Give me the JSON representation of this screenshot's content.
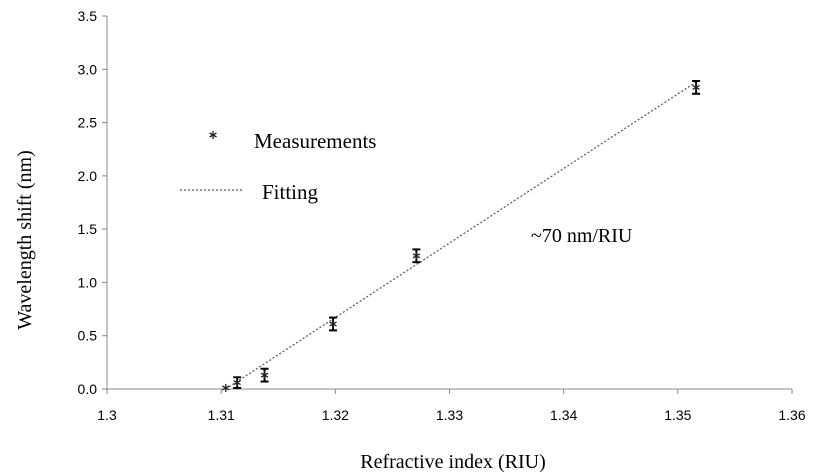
{
  "chart_data": {
    "type": "scatter",
    "xlabel": "Refractive index (RIU)",
    "ylabel": "Wavelength shift  (nm)",
    "xlim": [
      1.3,
      1.36
    ],
    "ylim": [
      0,
      3.5
    ],
    "x_ticks": [
      "1.3",
      "1.31",
      "1.32",
      "1.33",
      "1.34",
      "1.35",
      "1.36"
    ],
    "y_ticks": [
      "0.0",
      "0.5",
      "1.0",
      "1.5",
      "2.0",
      "2.5",
      "3.0",
      "3.5"
    ],
    "grid": false,
    "legend_position": "upper-left",
    "annotation": "~70 nm/RIU",
    "series": [
      {
        "name": "Measurements",
        "marker": "asterisk",
        "points": [
          {
            "x": 1.3104,
            "y": 0.01,
            "err": 0.0
          },
          {
            "x": 1.3114,
            "y": 0.06,
            "err": 0.05
          },
          {
            "x": 1.3138,
            "y": 0.13,
            "err": 0.06
          },
          {
            "x": 1.3198,
            "y": 0.61,
            "err": 0.06
          },
          {
            "x": 1.3271,
            "y": 1.25,
            "err": 0.06
          },
          {
            "x": 1.3516,
            "y": 2.83,
            "err": 0.06
          }
        ]
      },
      {
        "name": "Fitting",
        "style": "dotted",
        "line": [
          {
            "x": 1.3104,
            "y": 0.0
          },
          {
            "x": 1.3516,
            "y": 2.88
          }
        ]
      }
    ]
  }
}
